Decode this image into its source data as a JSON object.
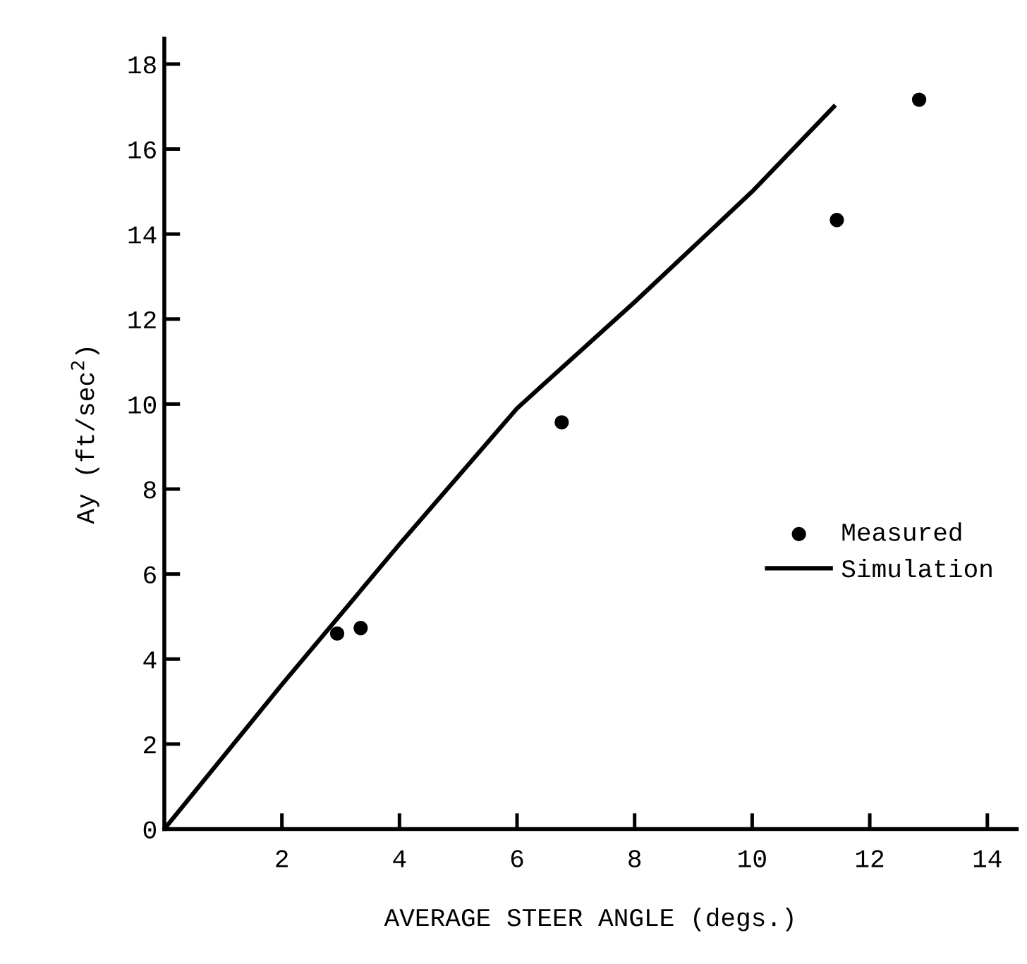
{
  "chart_data": {
    "type": "scatter",
    "xlabel": "AVERAGE STEER ANGLE (degs.)",
    "ylabel": "Ay (ft/sec$^{2}$)",
    "xlim": [
      0,
      14.5
    ],
    "ylim": [
      0,
      18.6
    ],
    "xticks": [
      2,
      4,
      6,
      8,
      10,
      12,
      14
    ],
    "yticks": [
      0,
      2,
      4,
      6,
      8,
      10,
      12,
      14,
      16,
      18
    ],
    "grid": false,
    "legend": "right",
    "series": [
      {
        "name": "Measured",
        "color": "#000000",
        "marker": "circle",
        "x": [
          2.94,
          3.34,
          6.76,
          11.44,
          12.84
        ],
        "values": [
          4.6,
          4.73,
          9.57,
          14.33,
          17.16
        ]
      },
      {
        "name": "Simulation",
        "type": "line",
        "color": "#000000",
        "line_style": "solid",
        "x": [
          0,
          2,
          4,
          6,
          8,
          10,
          11.39
        ],
        "values": [
          0,
          3.4,
          6.7,
          9.9,
          12.4,
          15.0,
          17.0
        ]
      }
    ]
  }
}
